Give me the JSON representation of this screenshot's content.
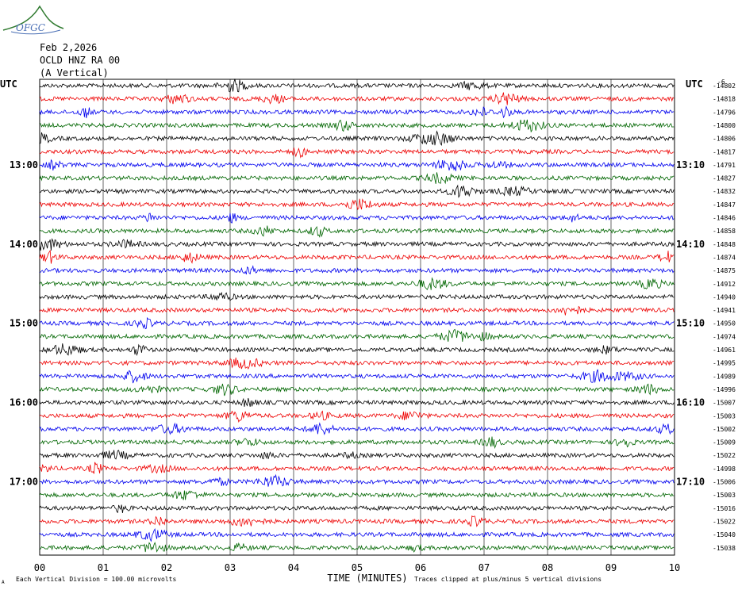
{
  "header": {
    "logo_text": "OFGC",
    "date": "Feb 2,2026",
    "station": "OCLD HNZ RA 00",
    "component": "(A Vertical)"
  },
  "labels": {
    "utc_left": "UTC",
    "utc_right": "UTC",
    "right_header": "-6"
  },
  "footer": {
    "scale_note": "Each Vertical Division =  100.00 microvolts",
    "clip_note": "Traces clipped at plus/minus 5 vertical divisions",
    "corner_mark": "A"
  },
  "colors": {
    "trace_cycle": [
      "#000000",
      "#ee0000",
      "#0000ee",
      "#006600"
    ],
    "grid": "#000000",
    "logo": "#2f7a2f"
  },
  "chart_data": {
    "type": "line",
    "title": "",
    "xlabel": "TIME (MINUTES)",
    "x_ticks": [
      "00",
      "01",
      "02",
      "03",
      "04",
      "05",
      "06",
      "07",
      "08",
      "09",
      "10"
    ],
    "xlim": [
      0,
      10
    ],
    "grid": true,
    "hour_labels_left": [
      {
        "trace_index": 6,
        "text": "13:00"
      },
      {
        "trace_index": 12,
        "text": "14:00"
      },
      {
        "trace_index": 18,
        "text": "15:00"
      },
      {
        "trace_index": 24,
        "text": "16:00"
      },
      {
        "trace_index": 30,
        "text": "17:00"
      }
    ],
    "hour_labels_right": [
      {
        "trace_index": 6,
        "text": "13:10"
      },
      {
        "trace_index": 12,
        "text": "14:10"
      },
      {
        "trace_index": 18,
        "text": "15:10"
      },
      {
        "trace_index": 24,
        "text": "16:10"
      },
      {
        "trace_index": 30,
        "text": "17:10"
      }
    ],
    "trace_offsets": [
      "-14802",
      "-14818",
      "-14796",
      "-14800",
      "-14806",
      "-14817",
      "-14791",
      "-14827",
      "-14832",
      "-14847",
      "-14846",
      "-14858",
      "-14848",
      "-14874",
      "-14875",
      "-14912",
      "-14940",
      "-14941",
      "-14950",
      "-14974",
      "-14961",
      "-14995",
      "-14989",
      "-14996",
      "-15007",
      "-15003",
      "-15002",
      "-15009",
      "-15022",
      "-14998",
      "-15006",
      "-15003",
      "-15016",
      "-15022",
      "-15040",
      "-15038"
    ]
  }
}
